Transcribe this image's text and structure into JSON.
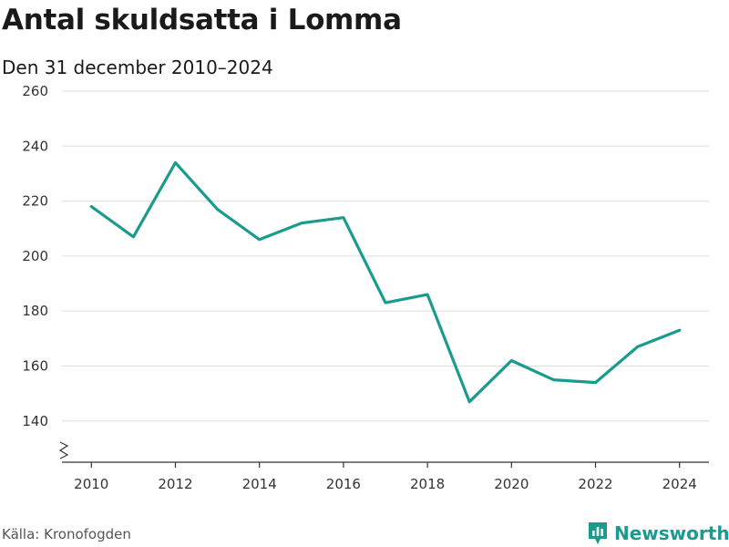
{
  "title": "Antal skuldsatta i Lomma",
  "subtitle": "Den 31 december 2010–2024",
  "source": "Källa: Kronofogden",
  "brand": {
    "name": "Newsworthy",
    "logo_icon": "bar-chart-logo-icon"
  },
  "colors": {
    "line": "#1a9b8e",
    "grid": "#dddddd",
    "axis": "#333333",
    "brand": "#1a9b8e"
  },
  "chart_data": {
    "type": "line",
    "title": "Antal skuldsatta i Lomma",
    "subtitle": "Den 31 december 2010–2024",
    "x": [
      2010,
      2011,
      2012,
      2013,
      2014,
      2015,
      2016,
      2017,
      2018,
      2019,
      2020,
      2021,
      2022,
      2023,
      2024
    ],
    "series": [
      {
        "values": [
          218,
          207,
          234,
          217,
          206,
          212,
          214,
          183,
          186,
          147,
          162,
          155,
          154,
          167,
          173
        ]
      }
    ],
    "x_ticks": [
      "2010",
      "2012",
      "2014",
      "2016",
      "2018",
      "2020",
      "2022",
      "2024"
    ],
    "y_ticks": [
      "140",
      "160",
      "180",
      "200",
      "220",
      "240",
      "260"
    ],
    "ylim": [
      125,
      260
    ],
    "xlim": [
      2009.3,
      2024.7
    ],
    "y_axis_break": true,
    "grid": true,
    "legend": "none"
  }
}
